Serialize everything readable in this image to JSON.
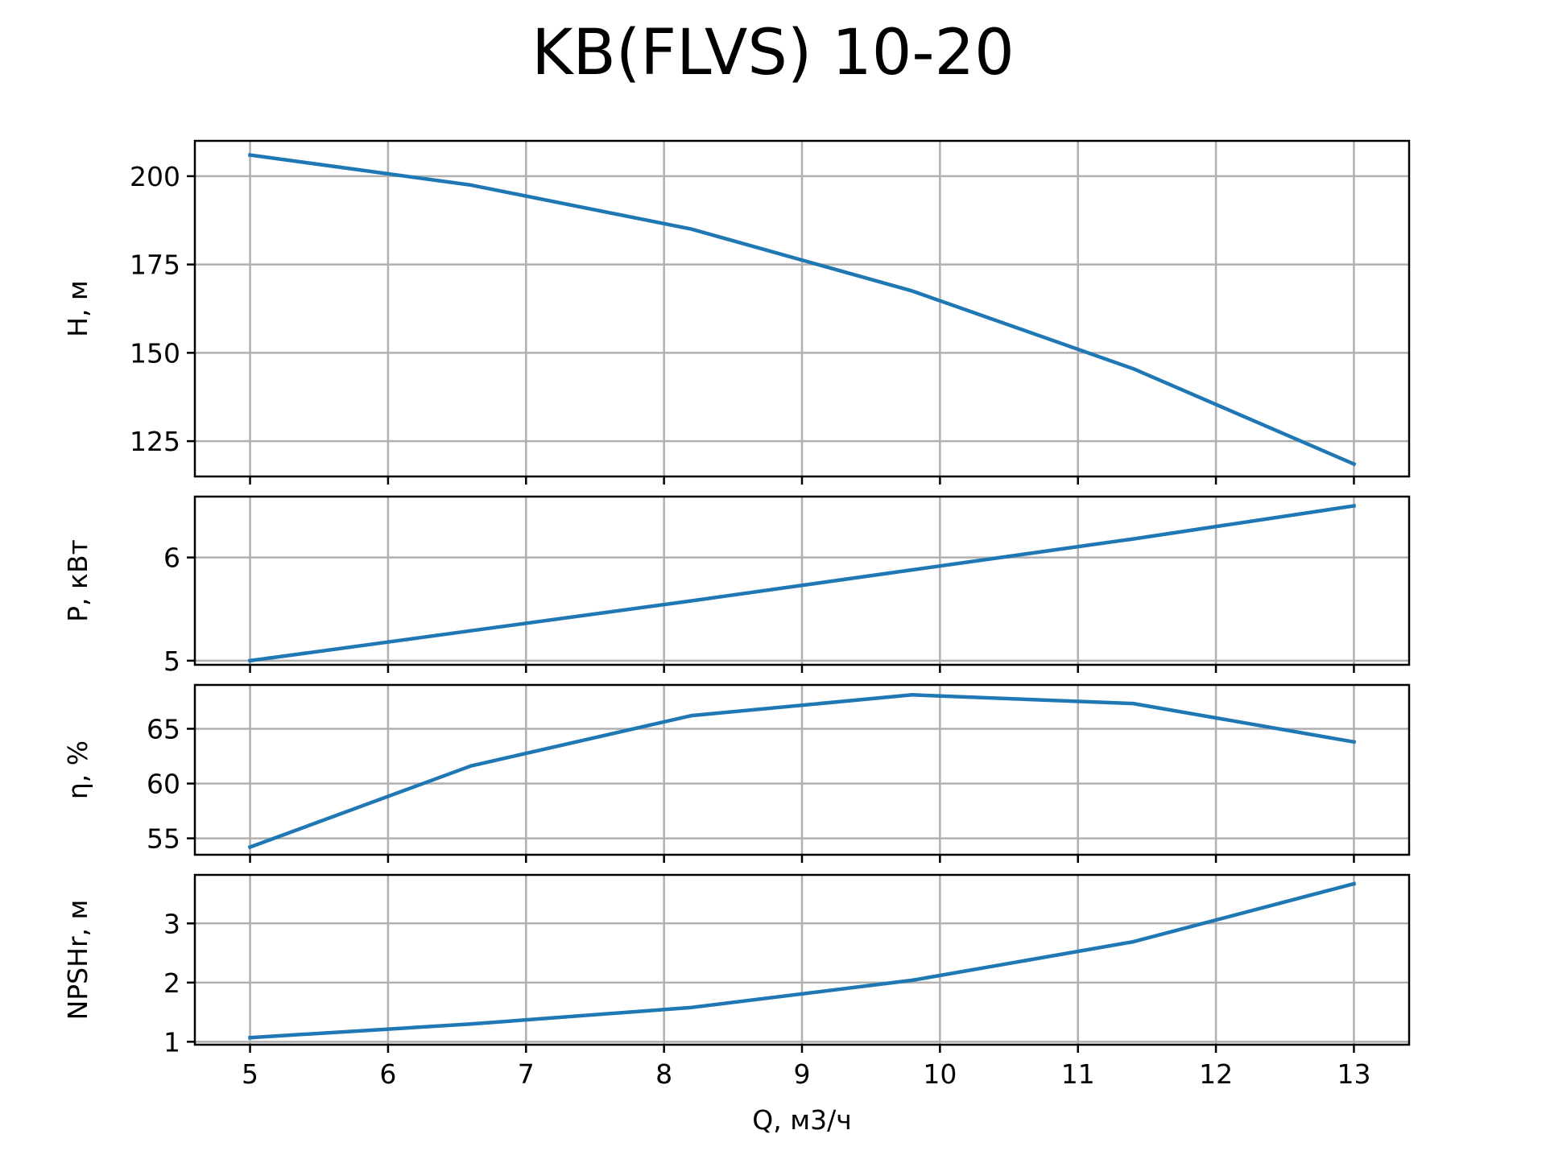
{
  "title": "KB(FLVS) 10-20",
  "colors": {
    "series": "#1f77b4",
    "grid": "#b0b0b0",
    "axis": "#000000"
  },
  "chart_data": [
    {
      "type": "line",
      "ylabel": "H, м",
      "x": [
        5,
        6.6,
        8.2,
        9.8,
        11.4,
        13
      ],
      "y": [
        206,
        197.5,
        185,
        167.5,
        145.5,
        118.5
      ],
      "xlim": [
        4.6,
        13.4
      ],
      "ylim": [
        115,
        210
      ],
      "xticks": [
        5,
        6,
        7,
        8,
        9,
        10,
        11,
        12,
        13
      ],
      "yticks": [
        125,
        150,
        175,
        200
      ],
      "grid": true
    },
    {
      "type": "line",
      "ylabel": "P, кВт",
      "x": [
        5,
        6.6,
        8.2,
        9.8,
        11.4,
        13
      ],
      "y": [
        5.0,
        5.29,
        5.58,
        5.88,
        6.18,
        6.5
      ],
      "xlim": [
        4.6,
        13.4
      ],
      "ylim": [
        4.96,
        6.59
      ],
      "xticks": [
        5,
        6,
        7,
        8,
        9,
        10,
        11,
        12,
        13
      ],
      "yticks": [
        5,
        6
      ],
      "grid": true
    },
    {
      "type": "line",
      "ylabel": "η, %",
      "x": [
        5,
        6.6,
        8.2,
        9.8,
        11.4,
        13
      ],
      "y": [
        54.2,
        61.6,
        66.2,
        68.1,
        67.3,
        63.8
      ],
      "xlim": [
        4.6,
        13.4
      ],
      "ylim": [
        53.5,
        69
      ],
      "xticks": [
        5,
        6,
        7,
        8,
        9,
        10,
        11,
        12,
        13
      ],
      "yticks": [
        55,
        60,
        65
      ],
      "grid": true
    },
    {
      "type": "line",
      "ylabel": "NPSHr, м",
      "x": [
        5,
        6.6,
        8.2,
        9.8,
        11.4,
        13
      ],
      "y": [
        1.07,
        1.3,
        1.58,
        2.04,
        2.69,
        3.67
      ],
      "xlabel": "Q, м3/ч",
      "xlim": [
        4.6,
        13.4
      ],
      "ylim": [
        0.95,
        3.82
      ],
      "xticks": [
        5,
        6,
        7,
        8,
        9,
        10,
        11,
        12,
        13
      ],
      "yticks": [
        1,
        2,
        3
      ],
      "grid": true
    }
  ]
}
